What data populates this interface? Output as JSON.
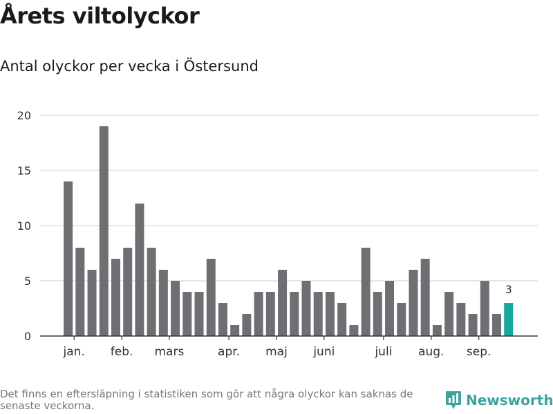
{
  "header": {
    "title": "Årets viltolyckor",
    "subtitle": "Antal olyckor per vecka i Östersund"
  },
  "footer": {
    "note": "Det finns en eftersläpning i statistiken som gör att några olyckor kan saknas de senaste veckorna.",
    "brand": "Newsworthy",
    "brand_icon": "bar-chart-speech-bubble-icon"
  },
  "colors": {
    "bar": "#6f6e73",
    "highlight": "#19a89c",
    "grid": "#dddddd",
    "axis": "#333333",
    "brand": "#3aa5a0"
  },
  "chart_data": {
    "type": "bar",
    "title": "Antal olyckor per vecka i Östersund",
    "xlabel": "",
    "ylabel": "",
    "ylim": [
      0,
      20
    ],
    "yticks": [
      0,
      5,
      10,
      15,
      20
    ],
    "weeks": [
      1,
      2,
      3,
      4,
      5,
      6,
      7,
      8,
      9,
      10,
      11,
      12,
      13,
      14,
      15,
      16,
      17,
      18,
      19,
      20,
      21,
      22,
      23,
      24,
      25,
      26,
      27,
      28,
      29,
      30,
      31,
      32,
      33,
      34,
      35,
      36,
      37,
      38
    ],
    "values": [
      14,
      8,
      6,
      19,
      7,
      8,
      12,
      8,
      6,
      5,
      4,
      4,
      7,
      3,
      1,
      2,
      4,
      4,
      6,
      4,
      5,
      4,
      4,
      3,
      1,
      8,
      4,
      5,
      3,
      6,
      7,
      1,
      4,
      3,
      2,
      5,
      2,
      3
    ],
    "highlight_index": 37,
    "highlight_label": "3",
    "month_labels": [
      {
        "label": "jan.",
        "week": 1.5
      },
      {
        "label": "feb.",
        "week": 5.5
      },
      {
        "label": "mars",
        "week": 9.5
      },
      {
        "label": "apr.",
        "week": 14.5
      },
      {
        "label": "maj",
        "week": 18.5
      },
      {
        "label": "juni",
        "week": 22.5
      },
      {
        "label": "juli",
        "week": 27.5
      },
      {
        "label": "aug.",
        "week": 31.5
      },
      {
        "label": "sep.",
        "week": 35.5
      }
    ]
  }
}
